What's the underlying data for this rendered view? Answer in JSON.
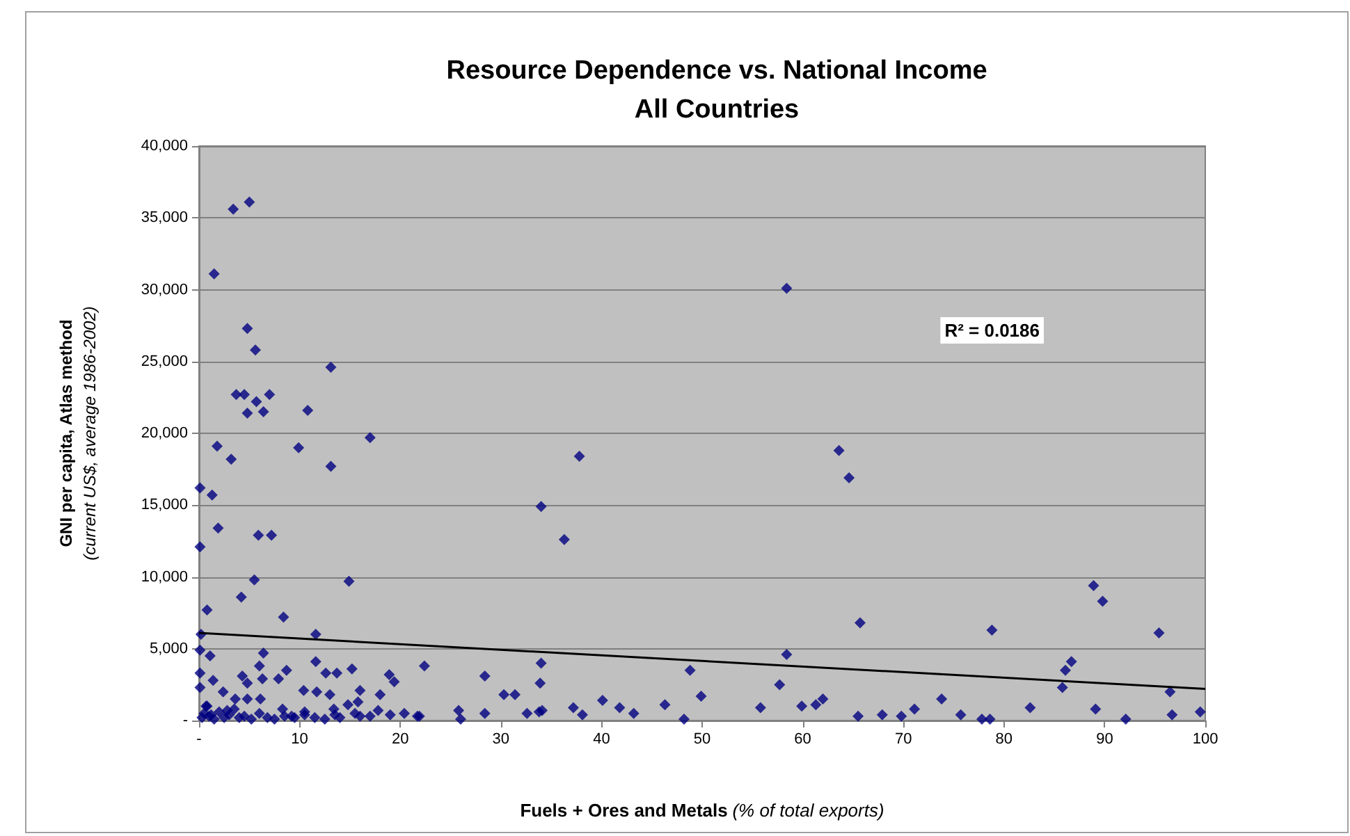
{
  "chart_data": {
    "type": "scatter",
    "title": "Resource Dependence vs. National Income\nAll Countries",
    "xlabel": "Fuels + Ores and Metals (% of total exports)",
    "ylabel": "GNI per capita, Atlas method (current US$, average 1986-2002)",
    "annotations": [
      "R² = 0.0186"
    ],
    "xlim": [
      0,
      100
    ],
    "xticks": [
      {
        "value": 0,
        "label": "-"
      },
      10,
      20,
      30,
      40,
      50,
      60,
      70,
      80,
      90,
      100
    ],
    "ylim": [
      0,
      40000
    ],
    "yticks": [
      {
        "value": 0,
        "label": "-"
      },
      {
        "value": 5000,
        "label": "5,000"
      },
      {
        "value": 10000,
        "label": "10,000"
      },
      {
        "value": 15000,
        "label": "15,000"
      },
      {
        "value": 20000,
        "label": "20,000"
      },
      {
        "value": 25000,
        "label": "25,000"
      },
      {
        "value": 30000,
        "label": "30,000"
      },
      {
        "value": 35000,
        "label": "35,000"
      },
      {
        "value": 40000,
        "label": "40,000"
      }
    ],
    "grid": "y",
    "marker": "diamond",
    "series": [
      {
        "color": "#000080",
        "x": [
          3.4,
          5.0,
          1.5,
          4.8,
          5.6,
          13.1,
          3.7,
          4.5,
          7.0,
          5.7,
          4.8,
          6.4,
          10.8,
          1.8,
          3.2,
          9.9,
          17.0,
          13.1,
          0.1,
          1.3,
          1.9,
          0.1,
          5.9,
          7.2,
          5.5,
          14.9,
          4.2,
          0.8,
          8.4,
          0.2,
          11.6,
          0.1,
          1.1,
          6.4,
          22.4,
          6.0,
          11.6,
          15.2,
          0.1,
          1.4,
          4.3,
          4.8,
          6.3,
          7.9,
          8.7,
          12.6,
          13.7,
          18.9,
          19.4,
          0.1,
          2.4,
          10.4,
          11.7,
          13.0,
          16.0,
          18.0,
          3.6,
          4.8,
          6.1,
          8.3,
          10.5,
          13.4,
          15.8,
          14.8,
          17.8,
          0.7,
          9.2,
          19.0,
          20.4,
          21.7,
          0.3,
          0.5,
          0.8,
          1.0,
          1.5,
          2.0,
          2.5,
          3.0,
          3.5,
          4.0,
          4.5,
          5.2,
          6.0,
          6.8,
          7.5,
          8.5,
          9.5,
          10.5,
          11.5,
          12.5,
          13.5,
          14.0,
          15.5,
          16.0,
          17.0,
          1.2,
          2.8,
          58.4,
          37.8,
          34.0,
          36.3,
          58.4,
          34.0,
          28.4,
          33.9,
          48.8,
          57.7,
          30.3,
          31.4,
          49.9,
          21.9,
          25.8,
          26.0,
          28.4,
          32.6,
          33.8,
          34.1,
          37.2,
          38.1,
          40.1,
          41.8,
          43.2,
          46.3,
          48.2,
          55.8,
          59.9,
          63.6,
          64.6,
          65.7,
          78.8,
          88.9,
          89.8,
          95.4,
          86.7,
          86.1,
          85.8,
          96.5,
          61.3,
          62.0,
          65.5,
          67.9,
          69.8,
          71.1,
          73.8,
          75.7,
          77.8,
          78.6,
          82.6,
          89.1,
          92.1,
          96.7,
          99.5
        ],
        "values": [
          35600,
          36100,
          31100,
          27300,
          25800,
          24600,
          22700,
          22700,
          22700,
          22200,
          21400,
          21500,
          21600,
          19100,
          18200,
          19000,
          19700,
          17700,
          16200,
          15700,
          13400,
          12100,
          12900,
          12900,
          9800,
          9700,
          8600,
          7700,
          7200,
          6000,
          6000,
          4900,
          4500,
          4700,
          3800,
          3800,
          4100,
          3600,
          3300,
          2800,
          3100,
          2600,
          2900,
          2900,
          3500,
          3300,
          3300,
          3200,
          2700,
          2300,
          2000,
          2100,
          2000,
          1800,
          2100,
          1800,
          1500,
          1500,
          1500,
          800,
          600,
          800,
          1300,
          1100,
          700,
          1000,
          300,
          400,
          500,
          300,
          200,
          500,
          1000,
          300,
          100,
          600,
          200,
          400,
          800,
          200,
          300,
          100,
          500,
          200,
          100,
          300,
          200,
          400,
          200,
          100,
          400,
          200,
          500,
          300,
          300,
          400,
          700,
          30100,
          18400,
          14900,
          12600,
          4600,
          4000,
          3100,
          2600,
          3500,
          2500,
          1800,
          1800,
          1700,
          300,
          700,
          100,
          500,
          500,
          600,
          700,
          900,
          400,
          1400,
          900,
          500,
          1100,
          100,
          900,
          1000,
          18800,
          16900,
          6800,
          6300,
          9400,
          8300,
          6100,
          4100,
          3500,
          2300,
          2000,
          1100,
          1500,
          300,
          400,
          300,
          800,
          1500,
          400,
          100,
          100,
          900,
          800,
          100,
          400,
          600
        ]
      },
      {
        "type": "line",
        "color": "#000000",
        "marker": "none",
        "x": [
          0,
          100
        ],
        "values": [
          6100,
          2200
        ]
      }
    ]
  }
}
